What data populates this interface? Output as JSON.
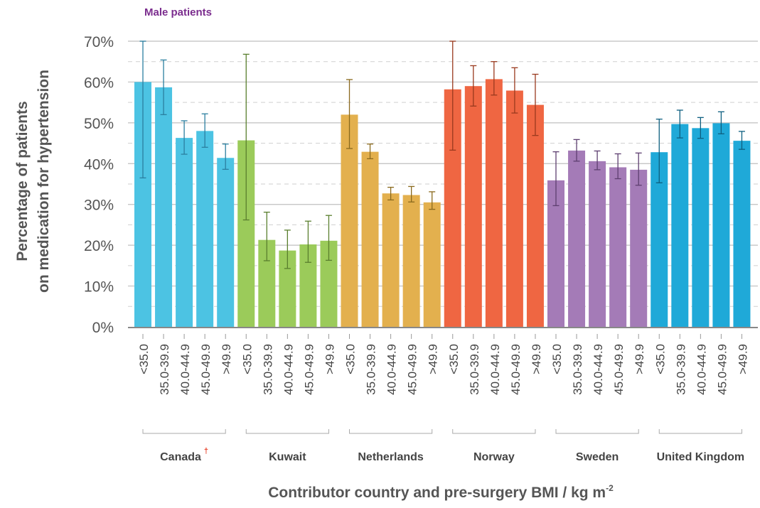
{
  "chart_data": {
    "type": "bar",
    "subtitle": "Male patients",
    "subtitle_color": "#7b2d8e",
    "ylabel_line1": "Percentage of patients",
    "ylabel_line2": "on medication for hypertension",
    "xlabel": "Contributor country and pre-surgery BMI / kg m",
    "xlabel_superscript": "-2",
    "ylim": [
      0,
      70
    ],
    "ytick_values": [
      0,
      10,
      20,
      30,
      40,
      50,
      60,
      70
    ],
    "ytick_labels": [
      "0%",
      "10%",
      "20%",
      "30%",
      "40%",
      "50%",
      "60%",
      "70%"
    ],
    "minor_grid_values": [
      5,
      15,
      25,
      35,
      45,
      55,
      65
    ],
    "grid": true,
    "bmi_categories": [
      "<35.0",
      "35.0-39.9",
      "40.0-44.9",
      "45.0-49.9",
      ">49.9"
    ],
    "groups": [
      {
        "name": "Canada",
        "mark": "†",
        "color": "#4cc3e3",
        "error_color": "#2b7fa0",
        "values": [
          60,
          58.7,
          46.3,
          48,
          41.4
        ],
        "error_low": [
          36.5,
          52,
          42.3,
          44,
          38.6
        ],
        "error_high": [
          70,
          65.4,
          50.5,
          52.2,
          44.8
        ]
      },
      {
        "name": "Kuwait",
        "mark": "",
        "color": "#9bcb5a",
        "error_color": "#5a7f2e",
        "values": [
          45.7,
          21.3,
          18.7,
          20.2,
          21.1
        ],
        "error_low": [
          26.2,
          16.2,
          14.3,
          15.8,
          16.3
        ],
        "error_high": [
          66.8,
          28.1,
          23.7,
          25.9,
          27.3
        ]
      },
      {
        "name": "Netherlands",
        "mark": "",
        "color": "#e3b04e",
        "error_color": "#8a6a1e",
        "values": [
          52,
          42.9,
          32.7,
          32.3,
          30.5
        ],
        "error_low": [
          43.7,
          41.2,
          31.1,
          30.6,
          28.8
        ],
        "error_high": [
          60.6,
          44.8,
          34.2,
          34.4,
          33.1
        ]
      },
      {
        "name": "Norway",
        "mark": "",
        "color": "#ef6642",
        "error_color": "#9a3a1e",
        "values": [
          58.2,
          59,
          60.7,
          57.9,
          54.4
        ],
        "error_low": [
          43.3,
          54.1,
          56.8,
          52.4,
          46.9
        ],
        "error_high": [
          70,
          64,
          65,
          63.5,
          61.9
        ]
      },
      {
        "name": "Sweden",
        "mark": "",
        "color": "#a47bb7",
        "error_color": "#5e3f70",
        "values": [
          35.9,
          43.2,
          40.6,
          39.1,
          38.5
        ],
        "error_low": [
          29.7,
          40.6,
          38.5,
          36.3,
          34.7
        ],
        "error_high": [
          42.9,
          45.9,
          43.1,
          42.4,
          42.6
        ]
      },
      {
        "name": "United Kingdom",
        "mark": "",
        "color": "#1fa9d8",
        "error_color": "#0e5f80",
        "values": [
          42.8,
          49.7,
          48.7,
          49.9,
          45.6
        ],
        "error_low": [
          35.3,
          46.3,
          46.2,
          47.3,
          43.5
        ],
        "error_high": [
          50.9,
          53.1,
          51.3,
          52.7,
          47.9
        ]
      }
    ]
  }
}
